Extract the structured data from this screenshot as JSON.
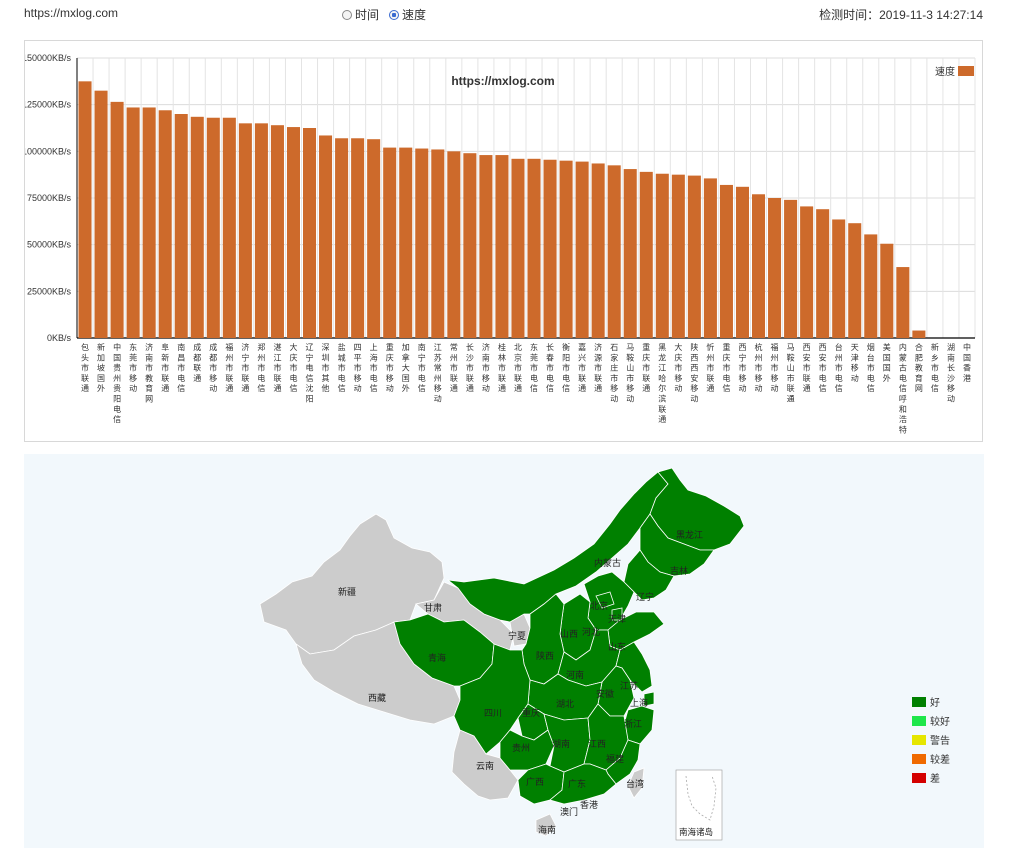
{
  "header": {
    "url": "https://mxlog.com",
    "radio_time": "时间",
    "radio_speed": "速度",
    "check_time": "检测时间：2019-11-3 14:27:14"
  },
  "chart_data": {
    "type": "bar",
    "title": "https://mxlog.com",
    "legend": "速度",
    "legend_position": "top-right",
    "color": "#cd6a2b",
    "ylim": [
      0,
      150000
    ],
    "yticks": [
      "0KB/s",
      "25000KB/s",
      "50000KB/s",
      "75000KB/s",
      "100000KB/s",
      "125000KB/s",
      "150000KB/s"
    ],
    "categories": [
      "包头市联通",
      "新加坡国外",
      "中国贵州贵阳电信",
      "东莞市移动",
      "济南市教育网",
      "阜新市联通",
      "南昌市电信",
      "成都联通",
      "成都市移动",
      "福州市联通",
      "济宁市联通",
      "郑州市电信",
      "湛江市联通",
      "大庆市电信",
      "辽宁电信沈阳",
      "深圳市其他",
      "盐城市电信",
      "四平市移动",
      "上海市电信",
      "重庆市移动",
      "加拿大国外",
      "南宁市电信",
      "江苏常州移动",
      "常州市联通",
      "长沙市联通",
      "济南市移动",
      "桂林市联通",
      "北京市联通",
      "东莞市电信",
      "长春市电信",
      "衡阳市电信",
      "嘉兴市联通",
      "济源市联通",
      "石家庄市移动",
      "马鞍山市移动",
      "重庆市联通",
      "黑龙江哈尔滨联通",
      "大庆市移动",
      "陕西西安移动",
      "忻州市联通",
      "重庆市电信",
      "西宁市移动",
      "杭州市移动",
      "福州市移动",
      "马鞍山市联通",
      "西安市联通",
      "西安市电信",
      "台州市电信",
      "天津移动",
      "烟台市电信",
      "美国国外",
      "内蒙古电信呼和浩特",
      "合肥教育网",
      "新乡市电信",
      "湖南长沙移动",
      "中国香港"
    ],
    "values": [
      137500,
      132500,
      126500,
      123500,
      123500,
      122000,
      120000,
      118500,
      118000,
      118000,
      115000,
      115000,
      114000,
      113000,
      112500,
      108500,
      107000,
      107000,
      106500,
      102000,
      102000,
      101500,
      101000,
      100000,
      99000,
      98000,
      98000,
      96000,
      96000,
      95500,
      95000,
      94500,
      93500,
      92500,
      90500,
      89000,
      88000,
      87500,
      87000,
      85500,
      82000,
      81000,
      77000,
      75000,
      74000,
      70500,
      69000,
      63500,
      61500,
      55500,
      50500,
      38000,
      4000,
      0,
      0,
      0
    ]
  },
  "map": {
    "regions": {
      "xinjiang": "新疆",
      "xizang": "西藏",
      "qinghai": "青海",
      "gansu": "甘肃",
      "ningxia": "宁夏",
      "neimenggu": "内蒙古",
      "heilongjiang": "黑龙江",
      "jilin": "吉林",
      "liaoning": "辽宁",
      "beijing": "北京",
      "tianjin": "天津",
      "hebei": "河北",
      "shanxi": "山西",
      "shandong": "山东",
      "shaanxi": "陕西",
      "henan": "河南",
      "jiangsu": "江苏",
      "anhui": "安徽",
      "shanghai": "上海",
      "sichuan": "四川",
      "chongqing": "重庆",
      "hubei": "湖北",
      "zhejiang": "浙江",
      "guizhou": "贵州",
      "hunan": "湖南",
      "jiangxi": "江西",
      "fujian": "福建",
      "yunnan": "云南",
      "guangxi": "广西",
      "guangdong": "广东",
      "taiwan": "台湾",
      "xianggang": "香港",
      "aomen": "澳门",
      "hainan": "海南",
      "nanhai": "南海诸岛"
    },
    "legend": [
      {
        "label": "好",
        "color": "#008000"
      },
      {
        "label": "较好",
        "color": "#1ee64a"
      },
      {
        "label": "警告",
        "color": "#e6e600"
      },
      {
        "label": "较差",
        "color": "#f06a00"
      },
      {
        "label": "差",
        "color": "#d40000"
      }
    ],
    "good_color": "#008000",
    "nodata_color": "#cccccc"
  }
}
